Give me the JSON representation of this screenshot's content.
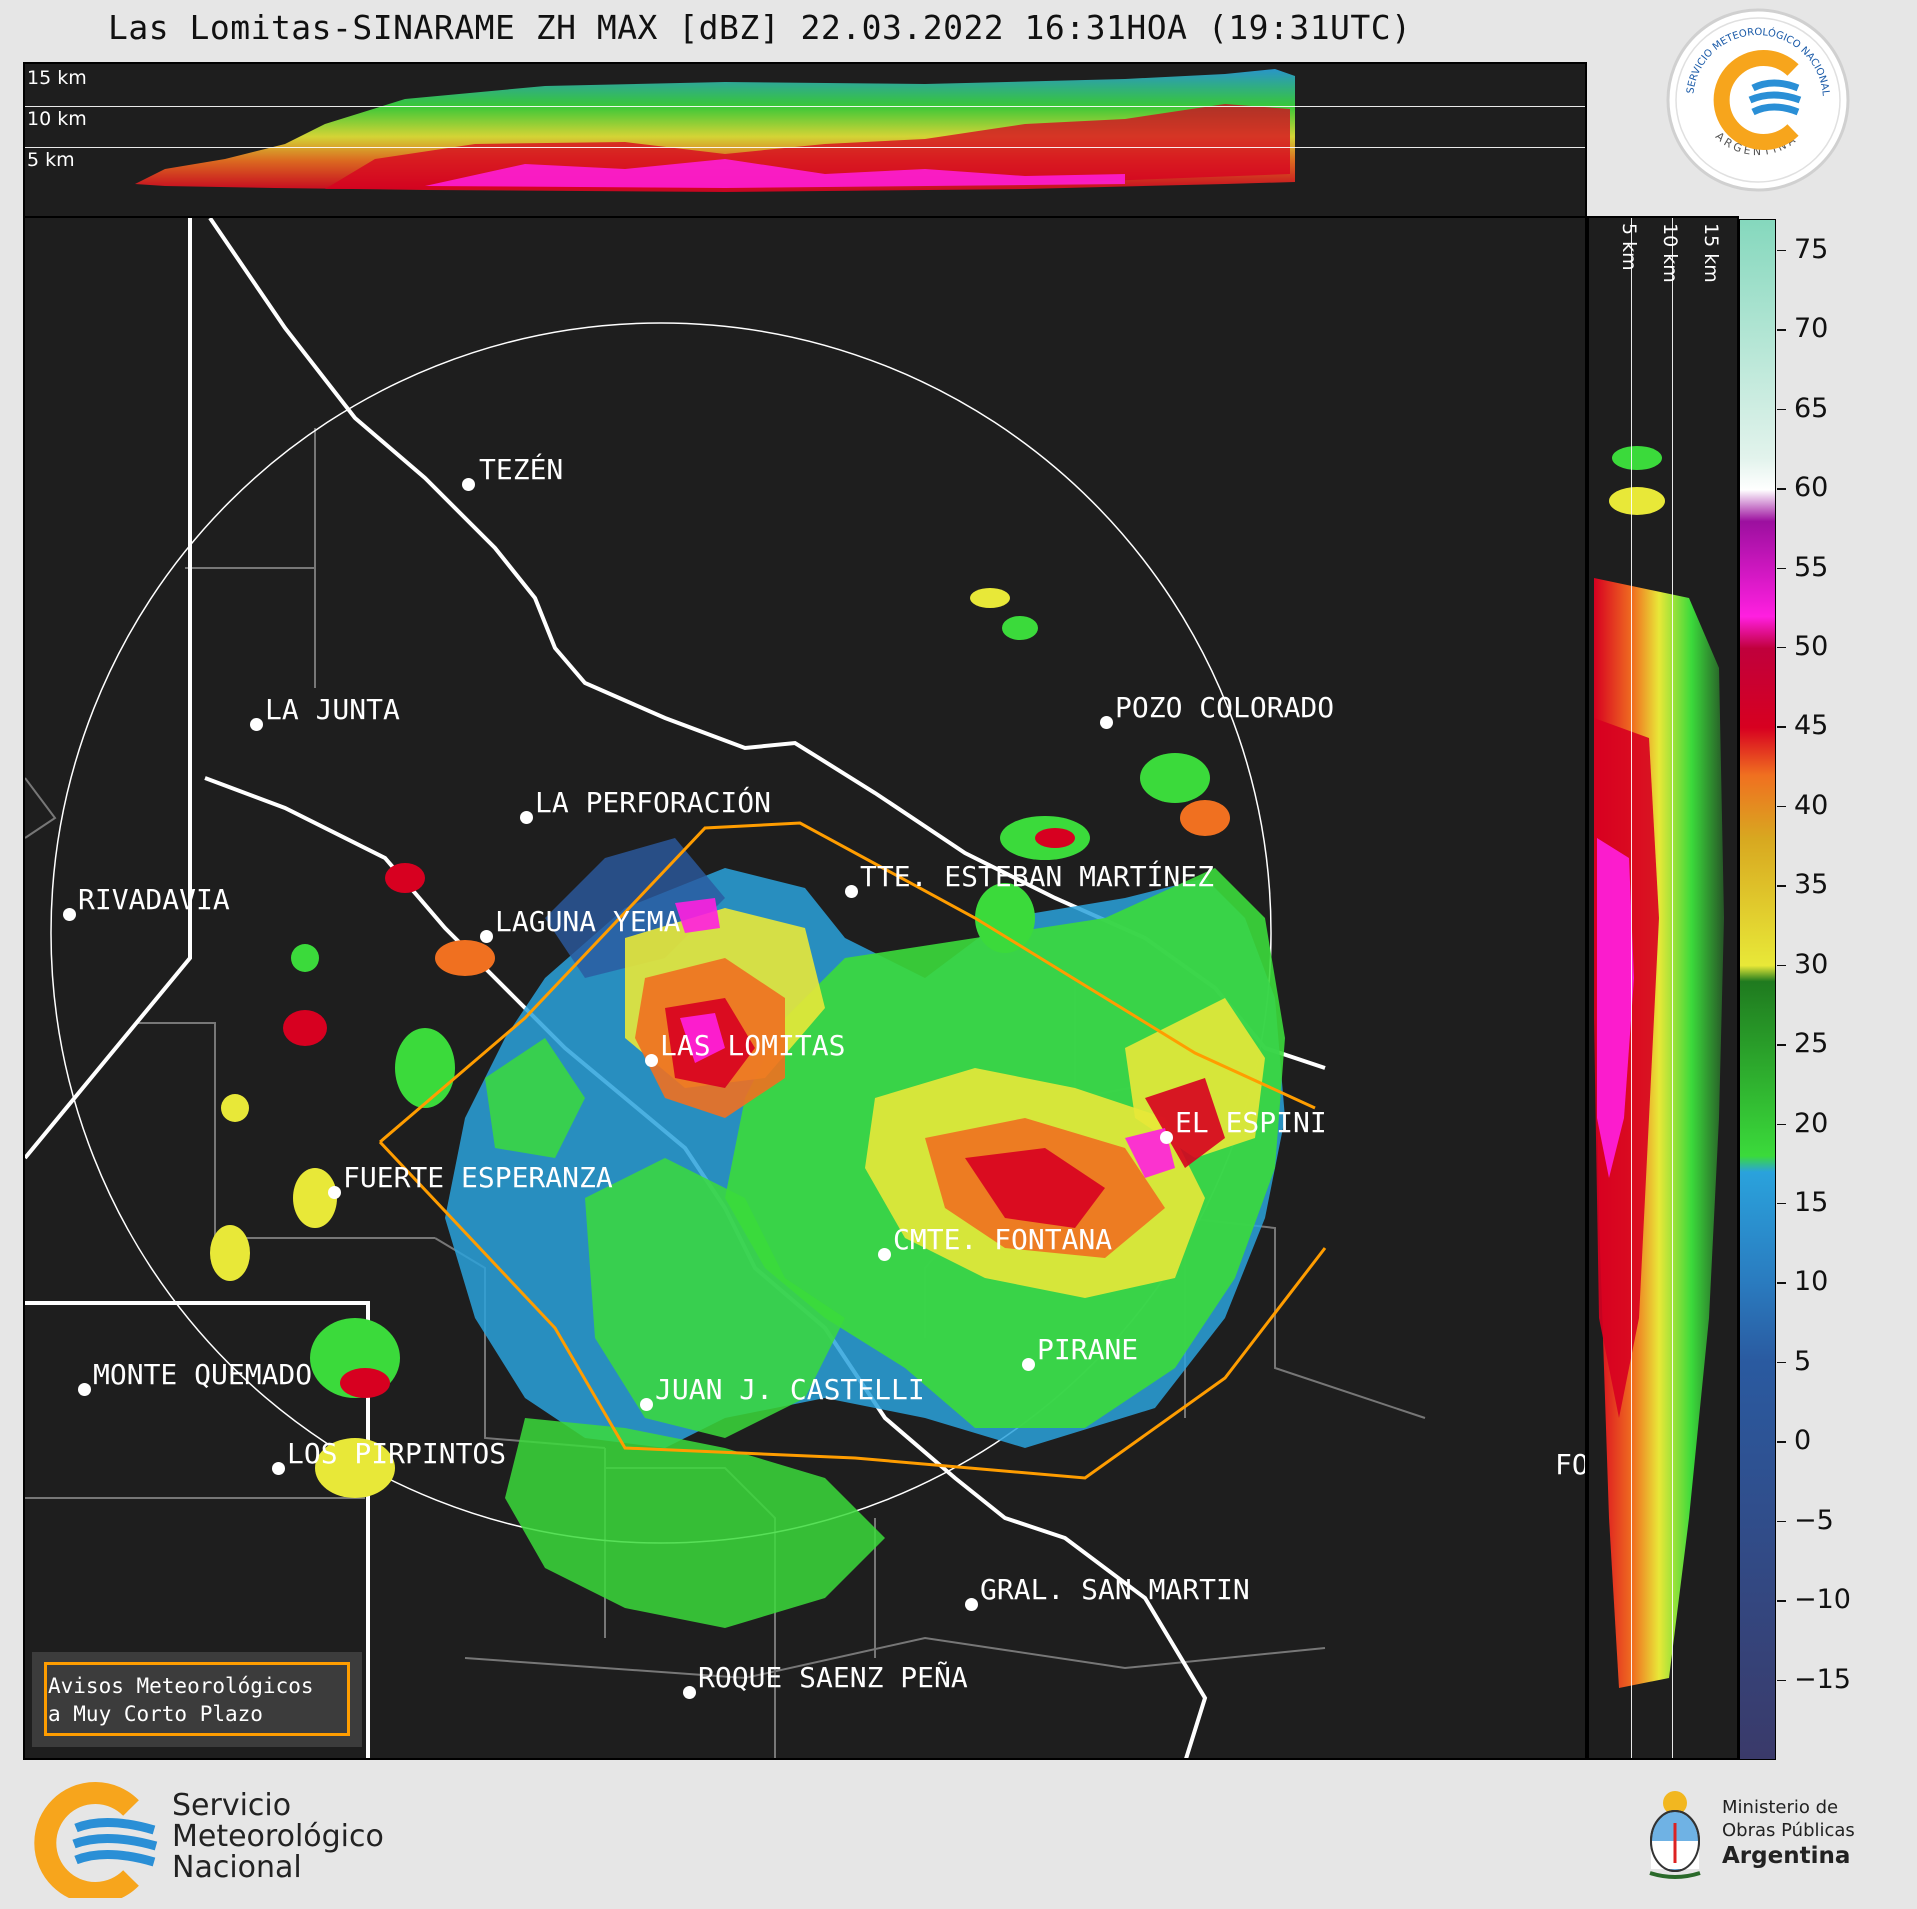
{
  "title": "Las Lomitas-SINARAME ZH MAX [dBZ] 22.03.2022 16:31HOA (19:31UTC)",
  "top_panel": {
    "altitude_labels": [
      "15 km",
      "10 km",
      "5 km"
    ]
  },
  "side_panel": {
    "altitude_labels": [
      "5 km",
      "10 km",
      "15 km"
    ]
  },
  "colorbar": {
    "unit": "dBZ",
    "ticks": [
      "75",
      "70",
      "65",
      "60",
      "55",
      "50",
      "45",
      "40",
      "35",
      "30",
      "25",
      "20",
      "15",
      "10",
      "5",
      "0",
      "−5",
      "−10",
      "−15"
    ],
    "range": [
      -20,
      77
    ],
    "stops": [
      {
        "v": 77,
        "c": "#85d8bd"
      },
      {
        "v": 62,
        "c": "#e2f3ec"
      },
      {
        "v": 60,
        "c": "#ffffff"
      },
      {
        "v": 58,
        "c": "#9c0f9f"
      },
      {
        "v": 52,
        "c": "#ff1fe0"
      },
      {
        "v": 50,
        "c": "#c0003c"
      },
      {
        "v": 45,
        "c": "#d70020"
      },
      {
        "v": 42,
        "c": "#f07020"
      },
      {
        "v": 38,
        "c": "#d8a820"
      },
      {
        "v": 30,
        "c": "#e8e838"
      },
      {
        "v": 29,
        "c": "#1f7a1f"
      },
      {
        "v": 18,
        "c": "#3bda3b"
      },
      {
        "v": 17,
        "c": "#2aa2dc"
      },
      {
        "v": 10,
        "c": "#2a7bbf"
      },
      {
        "v": 5,
        "c": "#2a5aa0"
      },
      {
        "v": -20,
        "c": "#3a3a6a"
      }
    ]
  },
  "cities": [
    {
      "name": "TEZÉN"
    },
    {
      "name": "LA JUNTA"
    },
    {
      "name": "POZO COLORADO"
    },
    {
      "name": "LA PERFORACIÓN"
    },
    {
      "name": "TTE. ESTEBAN MARTÍNEZ"
    },
    {
      "name": "RIVADAVIA"
    },
    {
      "name": "LAGUNA YEMA"
    },
    {
      "name": "LAS LOMITAS"
    },
    {
      "name": "EL ESPINI"
    },
    {
      "name": "FUERTE ESPERANZA"
    },
    {
      "name": "CMTE. FONTANA"
    },
    {
      "name": "PIRANE"
    },
    {
      "name": "MONTE QUEMADO"
    },
    {
      "name": "JUAN J. CASTELLI"
    },
    {
      "name": "LOS PIRPINTOS"
    },
    {
      "name": "FO"
    },
    {
      "name": "GRAL. SAN MARTIN"
    },
    {
      "name": "ROQUE SAENZ PEÑA"
    }
  ],
  "avisos": {
    "line1": "Avisos Meteorológicos",
    "line2": "a Muy Corto Plazo"
  },
  "smn_logo": {
    "text": "SERVICIO METEOROLÓGICO NACIONAL",
    "country": "ARGENTINA"
  },
  "footer": {
    "smn": [
      "Servicio",
      "Meteorológico",
      "Nacional"
    ],
    "ministry": [
      "Ministerio de",
      "Obras Públicas",
      "Argentina"
    ]
  },
  "colors": {
    "background": "#e6e6e6",
    "panel": "#1e1e1e",
    "warning_polygon": "#ff9d00",
    "refl_weak": "#2a7bbf",
    "refl_green": "#3bda3b",
    "refl_yellow": "#e8e838",
    "refl_orange": "#f07020",
    "refl_red": "#d70020",
    "refl_magenta": "#ff1fe0"
  }
}
